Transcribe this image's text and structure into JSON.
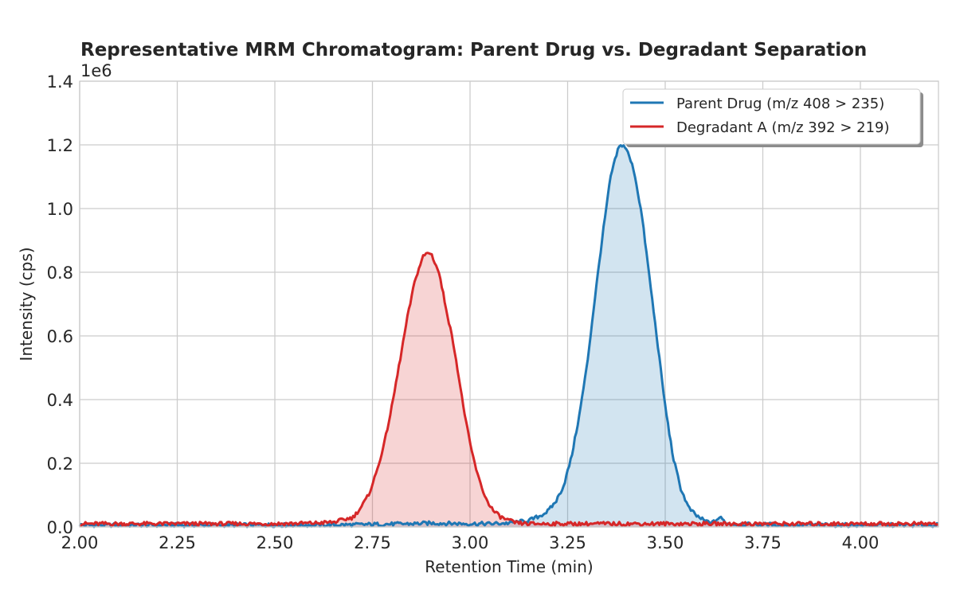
{
  "chart_data": {
    "type": "line",
    "title": "Representative MRM Chromatogram: Parent Drug vs. Degradant Separation",
    "xlabel": "Retention Time (min)",
    "ylabel": "Intensity (cps)",
    "y_offset_label": "1e6",
    "xlim": [
      2.0,
      4.2
    ],
    "ylim": [
      0,
      1.4
    ],
    "y_scale_factor": 1000000,
    "x_ticks": [
      2.0,
      2.25,
      2.5,
      2.75,
      3.0,
      3.25,
      3.5,
      3.75,
      4.0
    ],
    "x_tick_labels": [
      "2.00",
      "2.25",
      "2.50",
      "2.75",
      "3.00",
      "3.25",
      "3.50",
      "3.75",
      "4.00"
    ],
    "y_ticks": [
      0,
      0.2,
      0.4,
      0.6,
      0.8,
      1.0,
      1.2,
      1.4
    ],
    "y_tick_labels": [
      "0.0",
      "0.2",
      "0.4",
      "0.6",
      "0.8",
      "1.0",
      "1.2",
      "1.4"
    ],
    "grid": true,
    "legend_position": "top-right",
    "series": [
      {
        "name": "Parent Drug (m/z 408 > 235)",
        "color": "#1f77b4",
        "fill": "#1f77b4",
        "x": [
          2.0,
          2.1,
          2.2,
          2.3,
          2.4,
          2.5,
          2.6,
          2.7,
          2.75,
          2.8,
          2.85,
          2.9,
          2.95,
          3.0,
          3.05,
          3.1,
          3.15,
          3.18,
          3.2,
          3.22,
          3.24,
          3.26,
          3.28,
          3.3,
          3.32,
          3.34,
          3.36,
          3.38,
          3.39,
          3.4,
          3.42,
          3.44,
          3.46,
          3.48,
          3.5,
          3.52,
          3.54,
          3.56,
          3.58,
          3.6,
          3.62,
          3.64,
          3.66,
          3.7,
          3.8,
          3.9,
          4.0,
          4.1,
          4.2
        ],
        "values": [
          0.006,
          0.006,
          0.006,
          0.006,
          0.006,
          0.006,
          0.006,
          0.007,
          0.008,
          0.009,
          0.01,
          0.012,
          0.011,
          0.01,
          0.01,
          0.012,
          0.02,
          0.035,
          0.05,
          0.08,
          0.13,
          0.22,
          0.35,
          0.51,
          0.72,
          0.92,
          1.1,
          1.19,
          1.2,
          1.19,
          1.12,
          0.98,
          0.78,
          0.58,
          0.38,
          0.22,
          0.12,
          0.06,
          0.035,
          0.02,
          0.012,
          0.03,
          0.01,
          0.008,
          0.007,
          0.006,
          0.006,
          0.006,
          0.006
        ]
      },
      {
        "name": "Degradant A (m/z 392 > 219)",
        "color": "#d62728",
        "fill": "#d62728",
        "x": [
          2.0,
          2.1,
          2.2,
          2.3,
          2.4,
          2.5,
          2.6,
          2.65,
          2.7,
          2.72,
          2.74,
          2.76,
          2.78,
          2.8,
          2.82,
          2.84,
          2.86,
          2.88,
          2.89,
          2.9,
          2.92,
          2.94,
          2.96,
          2.98,
          3.0,
          3.02,
          3.04,
          3.06,
          3.08,
          3.1,
          3.12,
          3.15,
          3.2,
          3.3,
          3.4,
          3.5,
          3.6,
          3.7,
          3.8,
          3.9,
          4.0,
          4.1,
          4.2
        ],
        "values": [
          0.01,
          0.01,
          0.01,
          0.01,
          0.01,
          0.01,
          0.012,
          0.015,
          0.03,
          0.06,
          0.1,
          0.17,
          0.26,
          0.38,
          0.52,
          0.66,
          0.78,
          0.85,
          0.86,
          0.86,
          0.8,
          0.68,
          0.56,
          0.4,
          0.26,
          0.16,
          0.09,
          0.05,
          0.03,
          0.02,
          0.012,
          0.01,
          0.01,
          0.01,
          0.01,
          0.01,
          0.01,
          0.01,
          0.01,
          0.01,
          0.01,
          0.01,
          0.01
        ]
      }
    ]
  }
}
